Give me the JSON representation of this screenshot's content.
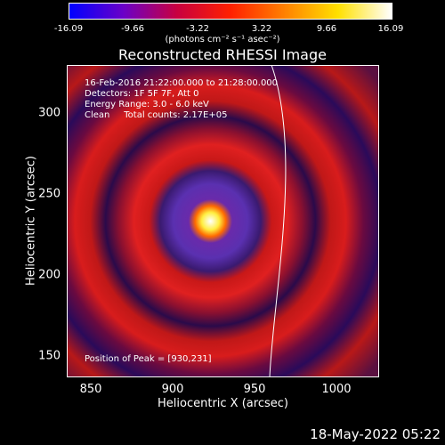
{
  "colorbar": {
    "ticks": [
      "-16.09",
      "-9.66",
      "-3.22",
      "3.22",
      "9.66",
      "16.09"
    ],
    "units": "(photons cm⁻² s⁻¹ asec⁻²)"
  },
  "title": "Reconstructed RHESSI Image",
  "info": {
    "time": "16-Feb-2016 21:22:00.000 to 21:28:00.000",
    "detectors": "Detectors: 1F 5F 7F, Att 0",
    "energy": "Energy Range: 3.0 - 6.0 keV",
    "clean": "Clean     Total counts: 2.17E+05",
    "peak": "Position of Peak = [930,231]"
  },
  "axes": {
    "xlabel": "Heliocentric X (arcsec)",
    "ylabel": "Heliocentric Y (arcsec)",
    "xticks": [
      "850",
      "900",
      "950",
      "1000"
    ],
    "yticks": [
      "300",
      "250",
      "200",
      "150"
    ]
  },
  "timestamp": "18-May-2022 05:22",
  "chart_data": {
    "type": "heatmap",
    "title": "Reconstructed RHESSI Image",
    "xlabel": "Heliocentric X (arcsec)",
    "ylabel": "Heliocentric Y (arcsec)",
    "xlim": [
      835,
      1025
    ],
    "ylim": [
      135,
      325
    ],
    "peak": [
      930,
      231
    ],
    "colorbar_range": [
      -16.09,
      16.09
    ],
    "colors": {
      "red": "#d91a1a",
      "purple": "#4a1a9a",
      "dark": "#1a0a3a",
      "peak": "#ffff80"
    }
  }
}
